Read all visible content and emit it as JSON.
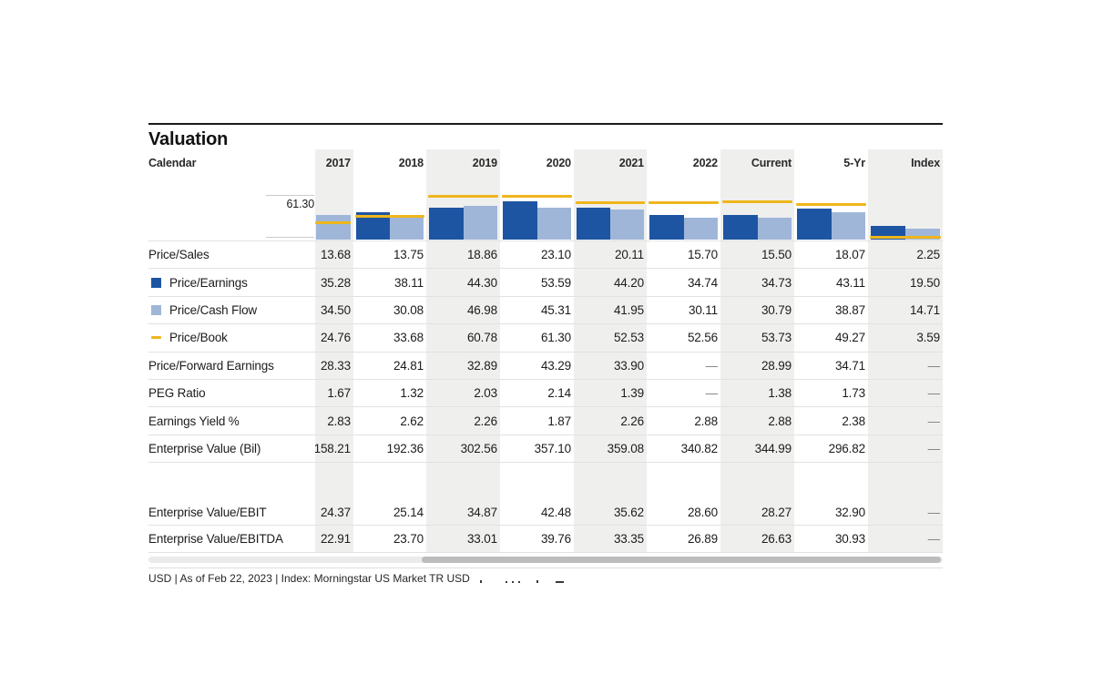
{
  "page": {
    "title": "Valuation",
    "calendar_label": "Calendar"
  },
  "columns": [
    "2017",
    "2018",
    "2019",
    "2020",
    "2021",
    "2022",
    "Current",
    "5-Yr",
    "Index"
  ],
  "axis": {
    "max_label": "61.30"
  },
  "rows": [
    {
      "label": "Price/Sales",
      "legend": null,
      "values": [
        "13.68",
        "13.75",
        "18.86",
        "23.10",
        "20.11",
        "15.70",
        "15.50",
        "18.07",
        "2.25"
      ]
    },
    {
      "label": "Price/Earnings",
      "legend": "pe",
      "values": [
        "35.28",
        "38.11",
        "44.30",
        "53.59",
        "44.20",
        "34.74",
        "34.73",
        "43.11",
        "19.50"
      ]
    },
    {
      "label": "Price/Cash Flow",
      "legend": "pcf",
      "values": [
        "34.50",
        "30.08",
        "46.98",
        "45.31",
        "41.95",
        "30.11",
        "30.79",
        "38.87",
        "14.71"
      ]
    },
    {
      "label": "Price/Book",
      "legend": "pb",
      "values": [
        "24.76",
        "33.68",
        "60.78",
        "61.30",
        "52.53",
        "52.56",
        "53.73",
        "49.27",
        "3.59"
      ]
    },
    {
      "label": "Price/Forward Earnings",
      "legend": null,
      "values": [
        "28.33",
        "24.81",
        "32.89",
        "43.29",
        "33.90",
        "—",
        "28.99",
        "34.71",
        "—"
      ]
    },
    {
      "label": "PEG Ratio",
      "legend": null,
      "values": [
        "1.67",
        "1.32",
        "2.03",
        "2.14",
        "1.39",
        "—",
        "1.38",
        "1.73",
        "—"
      ]
    },
    {
      "label": "Earnings Yield %",
      "legend": null,
      "values": [
        "2.83",
        "2.62",
        "2.26",
        "1.87",
        "2.26",
        "2.88",
        "2.88",
        "2.38",
        "—"
      ]
    },
    {
      "label": "Enterprise Value (Bil)",
      "legend": null,
      "values": [
        "158.21",
        "192.36",
        "302.56",
        "357.10",
        "359.08",
        "340.82",
        "344.99",
        "296.82",
        "—"
      ]
    },
    {
      "label": "Enterprise Value/EBIT",
      "legend": null,
      "values": [
        "24.37",
        "25.14",
        "34.87",
        "42.48",
        "35.62",
        "28.60",
        "28.27",
        "32.90",
        "—"
      ]
    },
    {
      "label": "Enterprise Value/EBITDA",
      "legend": null,
      "values": [
        "22.91",
        "23.70",
        "33.01",
        "39.76",
        "33.35",
        "26.89",
        "26.63",
        "30.93",
        "—"
      ]
    }
  ],
  "footer": {
    "text": "USD | As of Feb 22, 2023 | Index: Morningstar US Market TR USD"
  },
  "colors": {
    "pe_bar": "#1E55A3",
    "pcf_bar": "#9FB6D9",
    "pb_line": "#EFB61C",
    "band": "#EFEFEE",
    "rule": "#1A1A1A",
    "scroll_thumb": "#BCBCBC"
  },
  "chart_data": {
    "type": "bar",
    "categories": [
      "2017",
      "2018",
      "2019",
      "2020",
      "2021",
      "2022",
      "Current",
      "5-Yr",
      "Index"
    ],
    "series": [
      {
        "name": "Price/Earnings",
        "type": "bar",
        "color": "#1E55A3",
        "values": [
          35.28,
          38.11,
          44.3,
          53.59,
          44.2,
          34.74,
          34.73,
          43.11,
          19.5
        ]
      },
      {
        "name": "Price/Cash Flow",
        "type": "bar",
        "color": "#9FB6D9",
        "values": [
          34.5,
          30.08,
          46.98,
          45.31,
          41.95,
          30.11,
          30.79,
          38.87,
          14.71
        ]
      },
      {
        "name": "Price/Book",
        "type": "line",
        "color": "#EFB61C",
        "values": [
          24.76,
          33.68,
          60.78,
          61.3,
          52.53,
          52.56,
          53.73,
          49.27,
          3.59
        ]
      }
    ],
    "title": "Valuation",
    "xlabel": "",
    "ylabel": "",
    "ylim": [
      0,
      61.3
    ],
    "gridline_label": "61.30",
    "grid": "single-top-gridline",
    "legend_position": "row-labels",
    "note": "first category (2017) is horizontally clipped by scroll position; only the Price/Cash Flow bar and Price/Book marker are visible"
  }
}
